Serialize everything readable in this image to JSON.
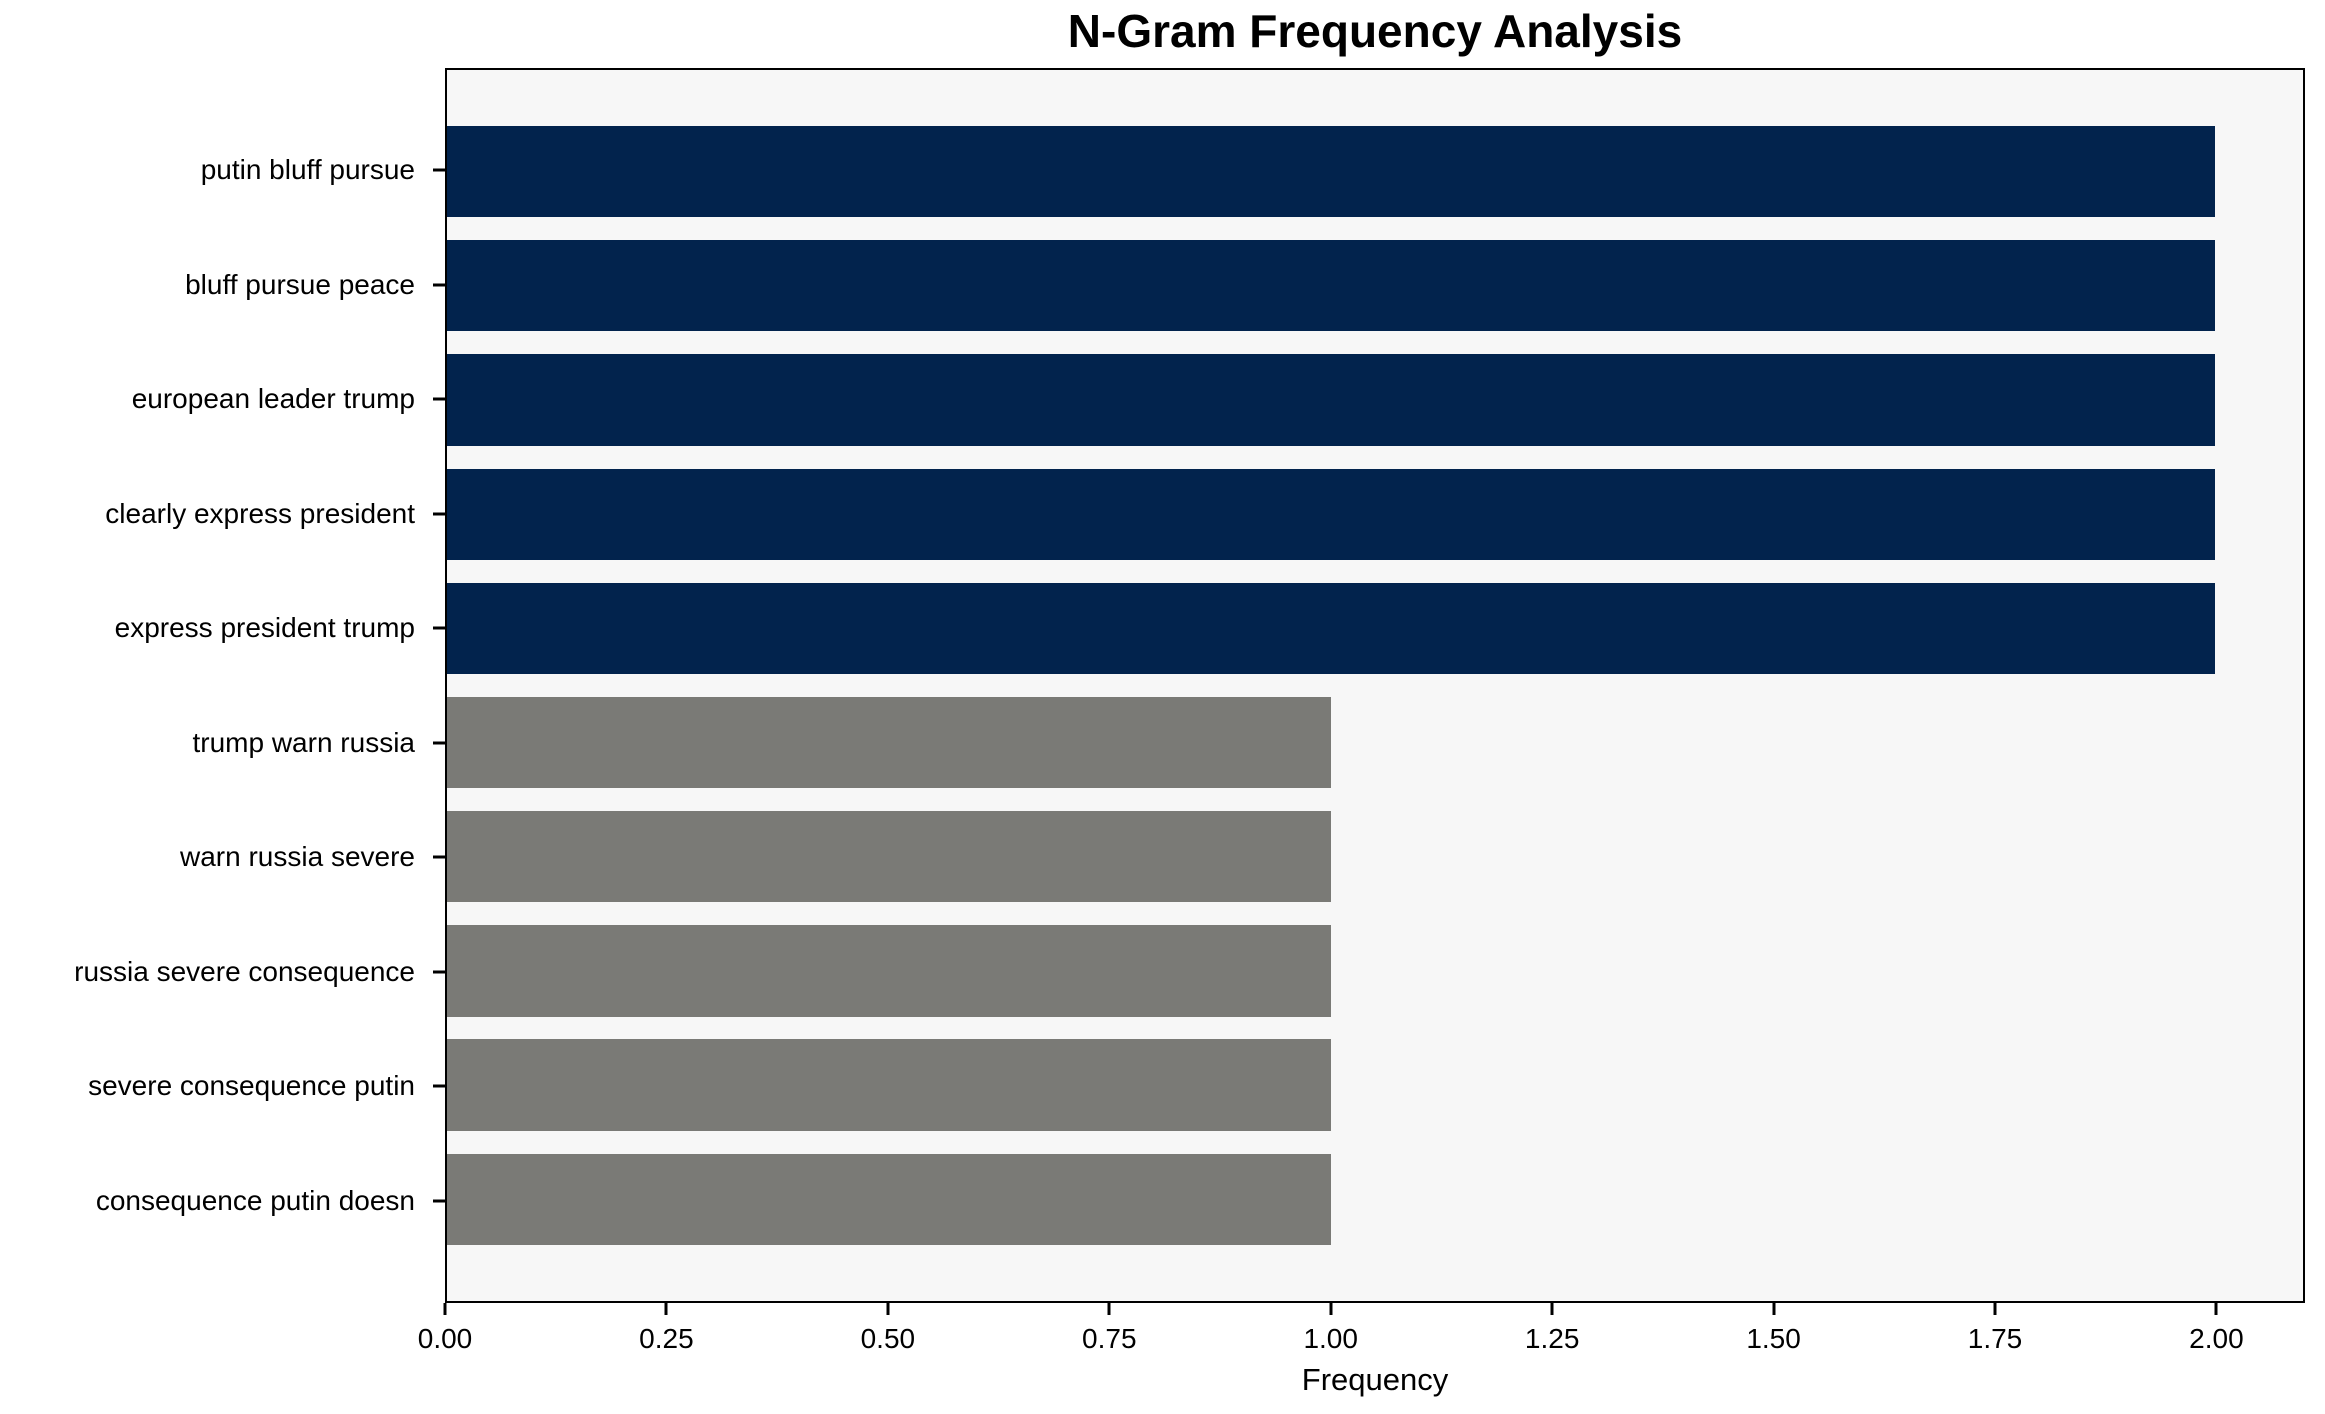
{
  "chart_data": {
    "type": "bar",
    "orientation": "horizontal",
    "title": "N-Gram Frequency Analysis",
    "xlabel": "Frequency",
    "ylabel": "",
    "categories": [
      "putin bluff pursue",
      "bluff pursue peace",
      "european leader trump",
      "clearly express president",
      "express president trump",
      "trump warn russia",
      "warn russia severe",
      "russia severe consequence",
      "severe consequence putin",
      "consequence putin doesn"
    ],
    "values": [
      2,
      2,
      2,
      2,
      2,
      1,
      1,
      1,
      1,
      1
    ],
    "bar_colors": [
      "#02234d",
      "#02234d",
      "#02234d",
      "#02234d",
      "#02234d",
      "#7a7a76",
      "#7a7a76",
      "#7a7a76",
      "#7a7a76",
      "#7a7a76"
    ],
    "xlim": [
      0,
      2.1
    ],
    "xtick_values": [
      0,
      0.25,
      0.5,
      0.75,
      1.0,
      1.25,
      1.5,
      1.75,
      2.0
    ],
    "xtick_labels": [
      "0.00",
      "0.25",
      "0.50",
      "0.75",
      "1.00",
      "1.25",
      "1.50",
      "1.75",
      "2.00"
    ],
    "grid": false,
    "legend_position": "none",
    "colors": {
      "highlight_bar": "#02234d",
      "default_bar": "#7a7a76",
      "plot_background": "#f7f7f7",
      "figure_background": "#ffffff",
      "spine": "#000000",
      "text": "#000000"
    }
  }
}
